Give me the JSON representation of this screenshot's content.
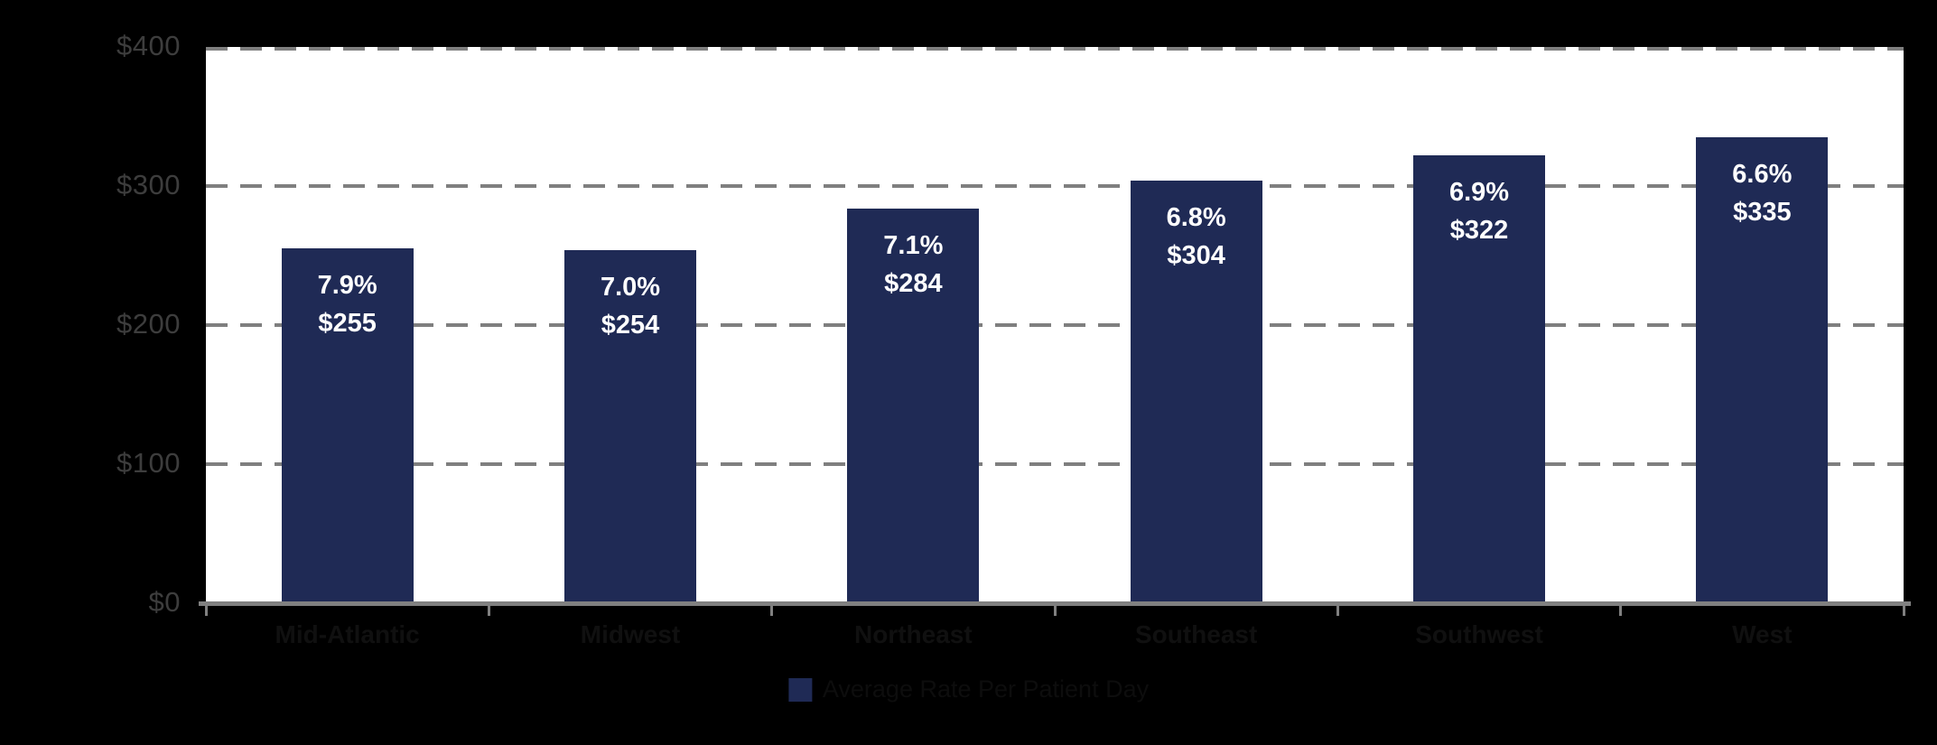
{
  "chart_data": {
    "type": "bar",
    "title": "",
    "categories": [
      "Mid-Atlantic",
      "Midwest",
      "Northeast",
      "Southeast",
      "Southwest",
      "West"
    ],
    "series": [
      {
        "name": "Average Rate Per Patient Day",
        "values": [
          255,
          254,
          284,
          304,
          322,
          335
        ]
      }
    ],
    "percent_labels": [
      "7.9%",
      "7.0%",
      "7.1%",
      "6.8%",
      "6.9%",
      "6.6%"
    ],
    "value_labels": [
      "$255",
      "$254",
      "$284",
      "$304",
      "$322",
      "$335"
    ],
    "xlabel": "",
    "ylabel": "",
    "ylim": [
      0,
      400
    ],
    "y_ticks": [
      {
        "value": 400,
        "label": "$400"
      },
      {
        "value": 300,
        "label": "$300"
      },
      {
        "value": 200,
        "label": "$200"
      },
      {
        "value": 100,
        "label": "$100"
      },
      {
        "value": 0,
        "label": "$0"
      }
    ],
    "grid": "horizontal-dashed",
    "legend": {
      "position": "bottom-center",
      "label": "Average Rate Per Patient Day",
      "marker_color": "#1f2a55"
    },
    "colors": {
      "page_background": "#000000",
      "plot_background": "#ffffff",
      "bar": "#1f2a55",
      "bar_label_text": "#ffffff",
      "gridline": "#7f7f7f",
      "axis_line": "#808080",
      "y_tick_text": "#3d3d3d",
      "x_tick_text": "#101010",
      "legend_text": "#0d0d0d"
    }
  }
}
